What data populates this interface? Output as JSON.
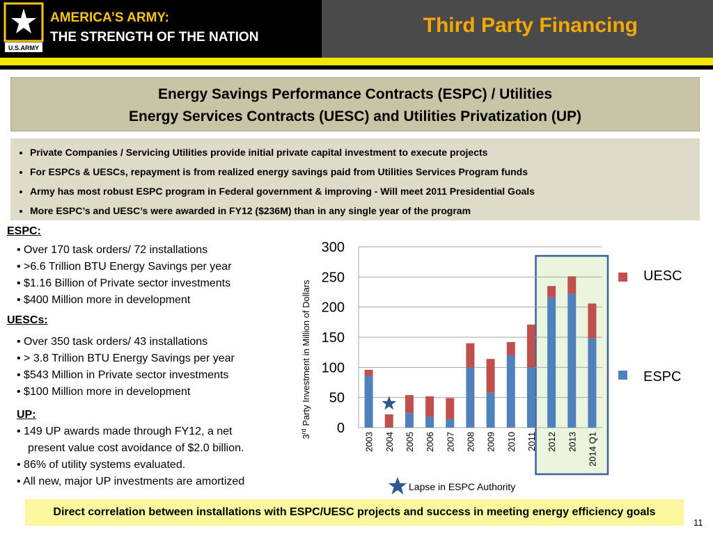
{
  "header": {
    "brand_line1": "AMERICA’S ARMY:",
    "brand_line2": "THE STRENGTH OF THE NATION",
    "logo_text": "U.S.ARMY",
    "title": "Third Party Financing",
    "brand_color": "#f5c518",
    "title_color": "#f5a800"
  },
  "title_box": {
    "line1": "Energy Savings Performance Contracts (ESPC) / Utilities",
    "line2": "Energy Services Contracts (UESC) and Utilities Privatization (UP)"
  },
  "bullets": [
    "Private Companies / Servicing Utilities provide initial private capital investment to execute projects",
    "For ESPCs & UESCs, repayment is from realized energy savings paid from Utilities Services Program funds",
    "Army has most robust ESPC program in Federal government & improving - Will meet 2011 Presidential Goals",
    "More ESPC’s and UESC’s were awarded in FY12 ($236M) than in any single year of the program"
  ],
  "espc": {
    "heading": "ESPC:",
    "items": [
      "• Over 170 task orders/ 72 installations",
      "• >6.6 Trillion BTU Energy Savings per year",
      "• $1.16 Billion of Private sector investments",
      "• $400 Million more in development"
    ]
  },
  "uesc": {
    "heading": "UESCs:",
    "items": [
      "• Over 350 task orders/ 43 installations",
      "• > 3.8 Trillion BTU Energy Savings per year",
      "• $543 Million in Private sector investments",
      "• $100 Million more in development"
    ]
  },
  "up": {
    "heading": "UP:",
    "items": [
      "• 149 UP awards made through FY12, a net",
      "present value cost avoidance of $2.0 billion.",
      "•  86% of utility systems evaluated.",
      "• All new, major UP investments are amortized"
    ]
  },
  "chart_data": {
    "type": "bar",
    "stacked": true,
    "categories": [
      "2003",
      "2004",
      "2005",
      "2006",
      "2007",
      "2008",
      "2009",
      "2010",
      "2011",
      "2012",
      "2013",
      "2014 Q1"
    ],
    "series": [
      {
        "name": "ESPC",
        "color": "#4f81bd",
        "values": [
          86,
          0,
          24,
          18,
          14,
          100,
          58,
          120,
          100,
          216,
          222,
          148
        ]
      },
      {
        "name": "UESC",
        "color": "#c0504d",
        "values": [
          10,
          22,
          30,
          34,
          35,
          40,
          56,
          22,
          71,
          19,
          29,
          58
        ]
      }
    ],
    "ylabel_prefix": "3",
    "ylabel_sup": "rd",
    "ylabel_suffix": " Party Investment in Million of Dollars",
    "ylim": [
      0,
      300
    ],
    "yticks": [
      "0",
      "50",
      "100",
      "150",
      "200",
      "250",
      "300"
    ],
    "grid": true,
    "legend_position": "right",
    "highlight_categories": [
      "2012",
      "2013",
      "2014 Q1"
    ],
    "highlight_fill": "#ebf4dc",
    "highlight_border": "#3a5f9a",
    "marker_category": "2004",
    "marker_value": 40,
    "marker_color": "#2e5894",
    "annotation": "Lapse in ESPC Authority"
  },
  "footer": {
    "text": "Direct correlation between installations with ESPC/UESC projects and success in meeting energy efficiency goals",
    "page_number": "11",
    "color": "#faf79e"
  }
}
